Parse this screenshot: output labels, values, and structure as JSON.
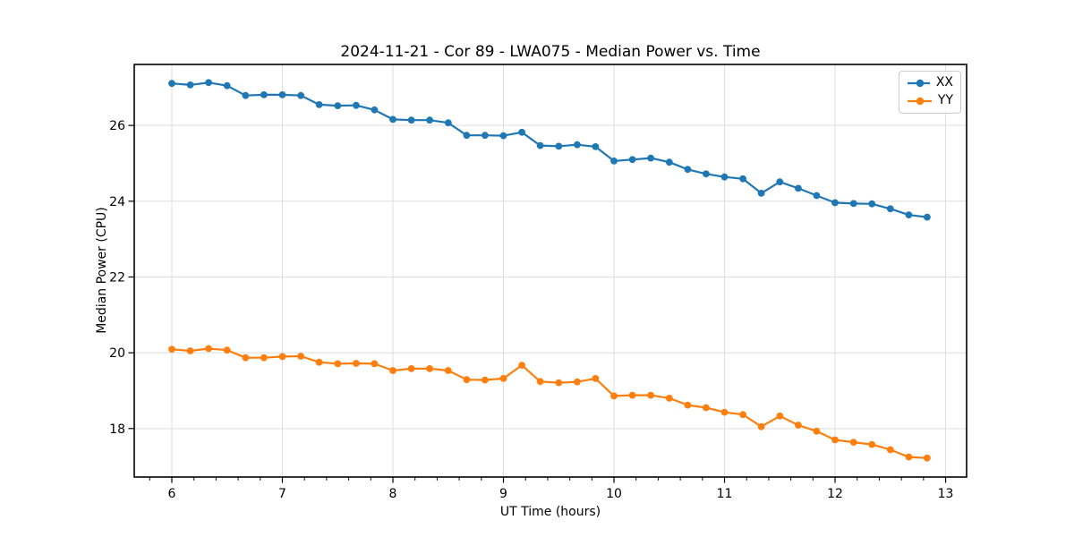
{
  "chart_data": {
    "type": "line",
    "title": "2024-11-21 - Cor 89 - LWA075 - Median Power vs. Time",
    "xlabel": "UT Time (hours)",
    "ylabel": "Median Power (CPU)",
    "xlim": [
      5.66,
      13.19
    ],
    "ylim": [
      16.72,
      27.61
    ],
    "x_ticks": [
      6,
      7,
      8,
      9,
      10,
      11,
      12,
      13
    ],
    "x_tick_labels": [
      "6",
      "7",
      "8",
      "9",
      "10",
      "11",
      "12",
      "13"
    ],
    "x_minor_tick_step": 0.2,
    "y_ticks": [
      18,
      20,
      22,
      24,
      26
    ],
    "y_tick_labels": [
      "18",
      "20",
      "22",
      "24",
      "26"
    ],
    "grid": true,
    "legend_position": "upper right",
    "x": [
      6.0,
      6.167,
      6.333,
      6.5,
      6.667,
      6.833,
      7.0,
      7.167,
      7.333,
      7.5,
      7.667,
      7.833,
      8.0,
      8.167,
      8.333,
      8.5,
      8.667,
      8.833,
      9.0,
      9.167,
      9.333,
      9.5,
      9.667,
      9.833,
      10.0,
      10.167,
      10.333,
      10.5,
      10.667,
      10.833,
      11.0,
      11.167,
      11.333,
      11.5,
      11.667,
      11.833,
      12.0,
      12.167,
      12.333,
      12.5,
      12.667,
      12.833
    ],
    "series": [
      {
        "name": "XX",
        "color": "#1f77b4",
        "marker": "circle",
        "values": [
          27.11,
          27.07,
          27.13,
          27.05,
          26.79,
          26.81,
          26.81,
          26.79,
          26.55,
          26.52,
          26.53,
          26.41,
          26.16,
          26.14,
          26.14,
          26.07,
          25.74,
          25.74,
          25.73,
          25.82,
          25.47,
          25.45,
          25.49,
          25.44,
          25.06,
          25.1,
          25.14,
          25.03,
          24.84,
          24.72,
          24.64,
          24.59,
          24.21,
          24.51,
          24.34,
          24.15,
          23.96,
          23.94,
          23.93,
          23.8,
          23.64,
          23.58
        ]
      },
      {
        "name": "YY",
        "color": "#ff7f0e",
        "marker": "circle",
        "values": [
          20.09,
          20.05,
          20.11,
          20.07,
          19.87,
          19.87,
          19.9,
          19.91,
          19.75,
          19.71,
          19.72,
          19.71,
          19.53,
          19.58,
          19.58,
          19.53,
          19.29,
          19.28,
          19.32,
          19.67,
          19.24,
          19.21,
          19.23,
          19.32,
          18.86,
          18.88,
          18.88,
          18.8,
          18.62,
          18.55,
          18.43,
          18.37,
          18.05,
          18.33,
          18.09,
          17.93,
          17.7,
          17.64,
          17.58,
          17.44,
          17.25,
          17.22
        ]
      }
    ],
    "colors": {
      "grid": "#dedede",
      "spine": "#000000",
      "text": "#000000",
      "legend_border": "#cccccc",
      "background": "#ffffff"
    }
  }
}
